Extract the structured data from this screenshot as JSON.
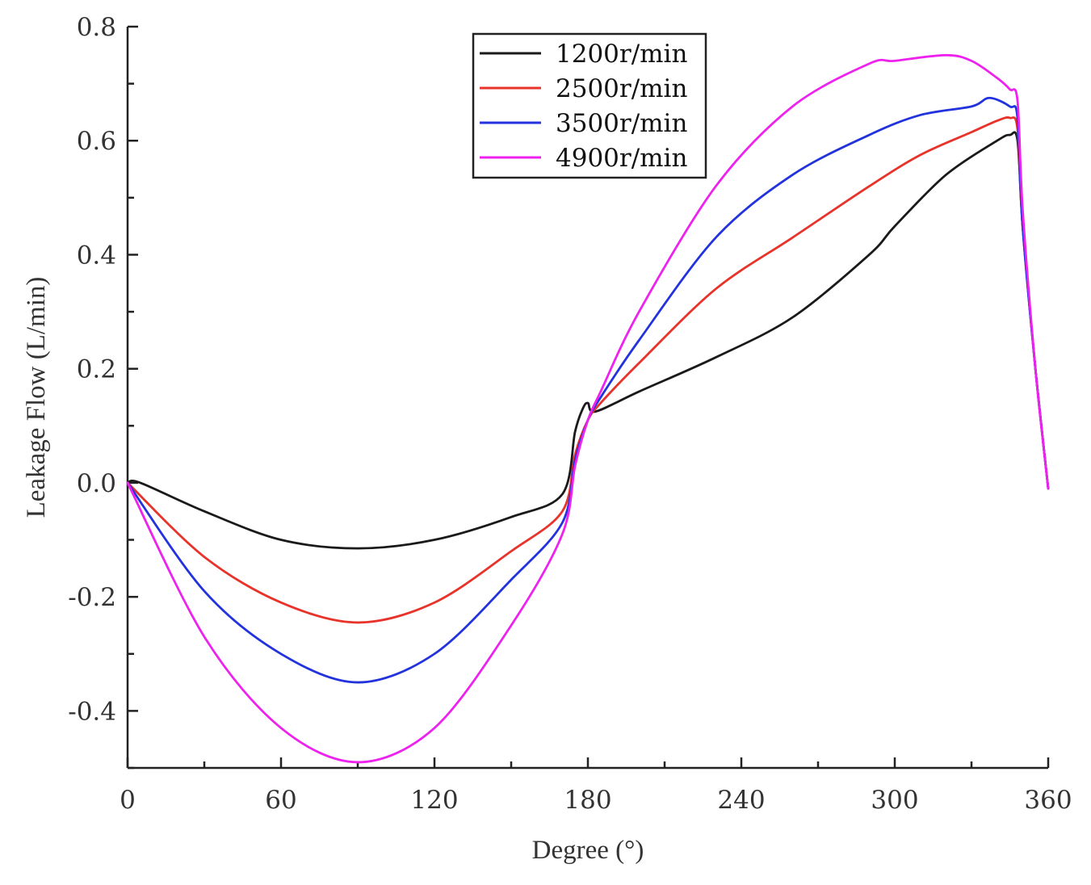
{
  "chart_data": {
    "type": "line",
    "title": "",
    "xlabel": "Degree (°)",
    "ylabel": "Leakage Flow (L/min)",
    "xlim": [
      0,
      360
    ],
    "ylim": [
      -0.5,
      0.8
    ],
    "xticks": [
      0,
      60,
      120,
      180,
      240,
      300,
      360
    ],
    "xtick_labels": [
      "0",
      "60",
      "120",
      "180",
      "240",
      "300",
      "360"
    ],
    "yticks": [
      -0.4,
      -0.2,
      0.0,
      0.2,
      0.4,
      0.6,
      0.8
    ],
    "ytick_labels": [
      "-0.4",
      "-0.2",
      "0.0",
      "0.2",
      "0.4",
      "0.6",
      "0.8"
    ],
    "grid": false,
    "legend_position": "top-center",
    "series": [
      {
        "name": "1200r/min",
        "color": "#1a1a1a",
        "x": [
          0,
          5,
          30,
          60,
          90,
          120,
          150,
          170,
          175,
          178,
          180,
          183,
          200,
          230,
          260,
          290,
          300,
          320,
          340,
          345,
          348,
          350,
          355,
          360
        ],
        "y": [
          0.0,
          0.0,
          -0.05,
          -0.1,
          -0.115,
          -0.1,
          -0.06,
          -0.02,
          0.09,
          0.13,
          0.14,
          0.125,
          0.16,
          0.22,
          0.29,
          0.4,
          0.45,
          0.54,
          0.6,
          0.61,
          0.6,
          0.45,
          0.2,
          -0.01
        ]
      },
      {
        "name": "2500r/min",
        "color": "#e8332a",
        "x": [
          0,
          30,
          60,
          90,
          120,
          150,
          170,
          175,
          180,
          185,
          200,
          230,
          260,
          290,
          310,
          330,
          340,
          345,
          348,
          350,
          355,
          360
        ],
        "y": [
          0.0,
          -0.13,
          -0.21,
          -0.245,
          -0.21,
          -0.12,
          -0.05,
          0.05,
          0.11,
          0.14,
          0.21,
          0.34,
          0.43,
          0.52,
          0.575,
          0.615,
          0.635,
          0.64,
          0.62,
          0.45,
          0.2,
          -0.01
        ]
      },
      {
        "name": "3500r/min",
        "color": "#2233dd",
        "x": [
          0,
          30,
          60,
          90,
          120,
          150,
          170,
          175,
          180,
          185,
          200,
          230,
          260,
          290,
          310,
          330,
          337,
          345,
          348,
          350,
          355,
          360
        ],
        "y": [
          0.0,
          -0.19,
          -0.3,
          -0.35,
          -0.3,
          -0.17,
          -0.07,
          0.04,
          0.11,
          0.15,
          0.25,
          0.43,
          0.54,
          0.61,
          0.645,
          0.66,
          0.675,
          0.66,
          0.64,
          0.45,
          0.2,
          -0.01
        ]
      },
      {
        "name": "4900r/min",
        "color": "#ee22ee",
        "x": [
          0,
          30,
          60,
          90,
          120,
          150,
          170,
          175,
          180,
          185,
          200,
          230,
          260,
          290,
          300,
          320,
          330,
          340,
          345,
          348,
          350,
          355,
          360
        ],
        "y": [
          0.0,
          -0.27,
          -0.43,
          -0.49,
          -0.43,
          -0.25,
          -0.09,
          0.03,
          0.11,
          0.16,
          0.3,
          0.52,
          0.66,
          0.735,
          0.74,
          0.75,
          0.74,
          0.71,
          0.69,
          0.67,
          0.48,
          0.2,
          -0.01
        ]
      }
    ]
  }
}
